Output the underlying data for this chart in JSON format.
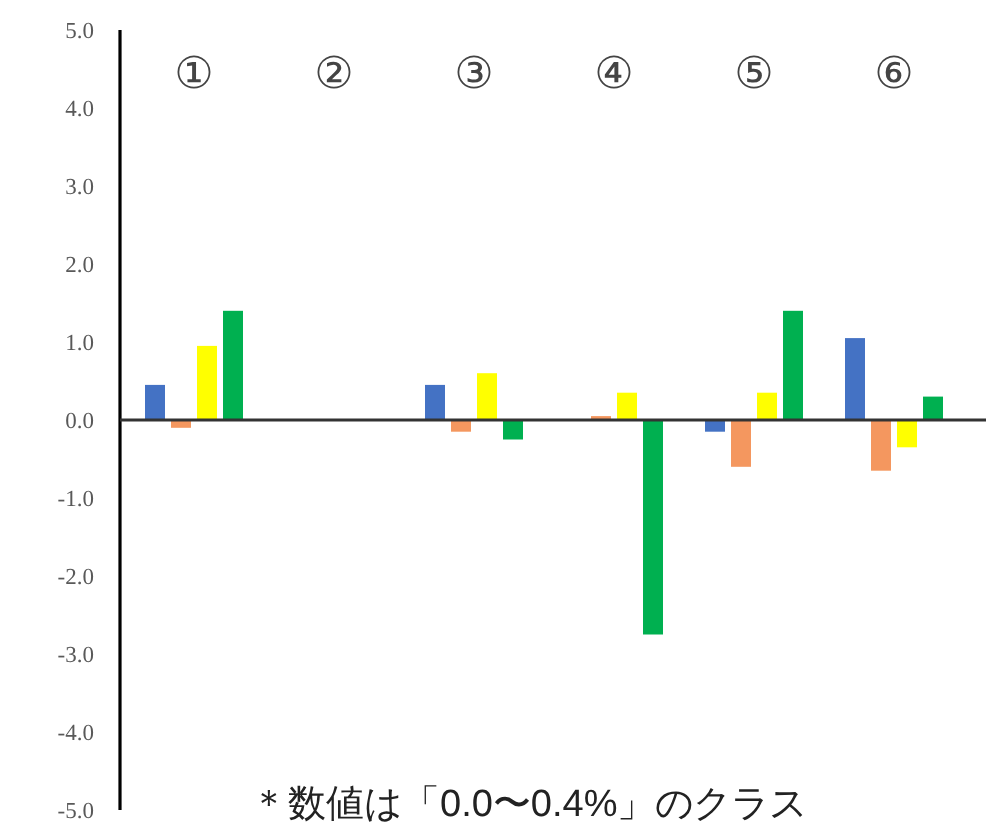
{
  "chart_data": {
    "type": "bar",
    "categories": [
      "①",
      "②",
      "③",
      "④",
      "⑤",
      "⑥"
    ],
    "series": [
      {
        "color": "#4472c4",
        "values": [
          0.45,
          null,
          0.45,
          null,
          -0.15,
          1.05
        ]
      },
      {
        "color": "#f4975f",
        "values": [
          -0.1,
          null,
          -0.15,
          0.05,
          -0.6,
          -0.65
        ]
      },
      {
        "color": "#ffff00",
        "values": [
          0.95,
          null,
          0.6,
          0.35,
          0.35,
          -0.35
        ]
      },
      {
        "color": "#00b050",
        "values": [
          1.4,
          null,
          -0.25,
          -2.75,
          1.4,
          0.3
        ]
      }
    ],
    "ylim": [
      -5,
      5
    ],
    "yticks": [
      {
        "value": 5,
        "label": "5.0"
      },
      {
        "value": 4,
        "label": "4.0"
      },
      {
        "value": 3,
        "label": "3.0"
      },
      {
        "value": 2,
        "label": "2.0"
      },
      {
        "value": 1,
        "label": "1.0"
      },
      {
        "value": 0,
        "label": "0.0"
      },
      {
        "value": -1,
        "label": "-1.0"
      },
      {
        "value": -2,
        "label": "-2.0"
      },
      {
        "value": -3,
        "label": "-3.0"
      },
      {
        "value": -4,
        "label": "-4.0"
      },
      {
        "value": -5,
        "label": "-5.0"
      }
    ],
    "annotations": [
      "＊数値は「0.0〜0.4%」のクラス"
    ]
  }
}
